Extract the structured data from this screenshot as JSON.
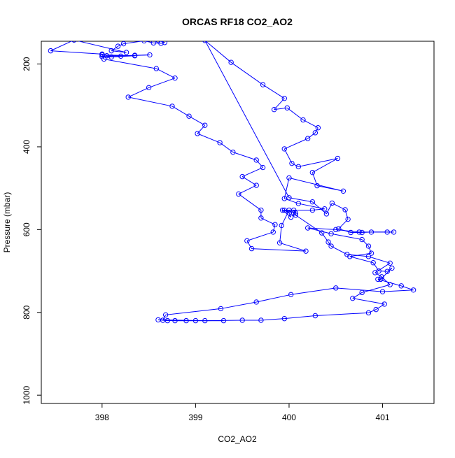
{
  "chart_data": {
    "type": "scatter",
    "title": "ORCAS RF18 CO2_AO2",
    "xlabel": "CO2_AO2",
    "ylabel": "Pressure (mbar)",
    "xlim": [
      397.35,
      401.55
    ],
    "ylim": [
      1020,
      145
    ],
    "y_reversed": true,
    "x_ticks": [
      398,
      399,
      400,
      401
    ],
    "y_ticks": [
      200,
      400,
      600,
      800,
      1000
    ],
    "series": [
      {
        "color": "#0000ff",
        "marker": "open-circle",
        "line": true,
        "points": [
          [
            398.6,
            143
          ],
          [
            398.67,
            148
          ],
          [
            398.63,
            150
          ],
          [
            398.55,
            149
          ],
          [
            398.45,
            144
          ],
          [
            398.23,
            151
          ],
          [
            398.17,
            157
          ],
          [
            398.1,
            168
          ],
          [
            398.26,
            172
          ],
          [
            397.7,
            142
          ],
          [
            397.45,
            168
          ],
          [
            398.0,
            176
          ],
          [
            398.05,
            180
          ],
          [
            398.2,
            181
          ],
          [
            398.51,
            178
          ],
          [
            398.35,
            179
          ],
          [
            398.0,
            182
          ],
          [
            398.1,
            183
          ],
          [
            398.35,
            180
          ],
          [
            398.0,
            178
          ],
          [
            398.02,
            188
          ],
          [
            398.58,
            211
          ],
          [
            398.78,
            234
          ],
          [
            398.5,
            257
          ],
          [
            398.28,
            280
          ],
          [
            398.75,
            302
          ],
          [
            398.93,
            326
          ],
          [
            399.1,
            348
          ],
          [
            399.02,
            368
          ],
          [
            399.26,
            390
          ],
          [
            399.4,
            413
          ],
          [
            399.65,
            432
          ],
          [
            399.72,
            450
          ],
          [
            399.5,
            472
          ],
          [
            399.65,
            493
          ],
          [
            399.46,
            514
          ],
          [
            399.7,
            553
          ],
          [
            399.7,
            572
          ],
          [
            399.85,
            588
          ],
          [
            399.83,
            606
          ],
          [
            399.55,
            627
          ],
          [
            399.6,
            646
          ],
          [
            400.18,
            652
          ],
          [
            399.9,
            632
          ],
          [
            399.92,
            590
          ],
          [
            400.0,
            553
          ],
          [
            400.05,
            553
          ],
          [
            400.07,
            560
          ],
          [
            399.95,
            553
          ],
          [
            400.0,
            560
          ],
          [
            400.02,
            570
          ],
          [
            399.93,
            553
          ],
          [
            400.25,
            553
          ],
          [
            400.38,
            550
          ],
          [
            400.1,
            537
          ],
          [
            399.95,
            525
          ],
          [
            400.0,
            475
          ],
          [
            400.58,
            507
          ],
          [
            400.3,
            494
          ],
          [
            400.25,
            462
          ],
          [
            400.52,
            428
          ],
          [
            400.1,
            448
          ],
          [
            400.03,
            440
          ],
          [
            399.95,
            405
          ],
          [
            400.2,
            380
          ],
          [
            400.28,
            366
          ],
          [
            400.31,
            354
          ],
          [
            400.15,
            335
          ],
          [
            399.98,
            306
          ],
          [
            399.84,
            310
          ],
          [
            399.95,
            283
          ],
          [
            399.72,
            250
          ],
          [
            399.38,
            196
          ],
          [
            399.1,
            143
          ],
          [
            400.0,
            523
          ],
          [
            400.25,
            533
          ],
          [
            400.4,
            562
          ],
          [
            400.46,
            536
          ],
          [
            400.6,
            552
          ],
          [
            400.63,
            575
          ],
          [
            400.53,
            598
          ],
          [
            400.66,
            607
          ],
          [
            400.78,
            607
          ],
          [
            400.88,
            606
          ],
          [
            401.05,
            606
          ],
          [
            401.12,
            606
          ],
          [
            400.75,
            606
          ],
          [
            400.5,
            600
          ],
          [
            400.2,
            596
          ],
          [
            400.45,
            610
          ],
          [
            400.78,
            624
          ],
          [
            400.85,
            640
          ],
          [
            400.88,
            657
          ],
          [
            400.65,
            665
          ],
          [
            400.9,
            680
          ],
          [
            400.96,
            700
          ],
          [
            401.05,
            701
          ],
          [
            401.1,
            693
          ],
          [
            400.98,
            720
          ],
          [
            400.95,
            720
          ],
          [
            401.2,
            736
          ],
          [
            401.33,
            746
          ],
          [
            401.0,
            750
          ],
          [
            400.5,
            741
          ],
          [
            400.02,
            757
          ],
          [
            399.65,
            775
          ],
          [
            399.27,
            791
          ],
          [
            398.68,
            806
          ],
          [
            398.65,
            819
          ],
          [
            398.78,
            820
          ],
          [
            399.0,
            820
          ],
          [
            399.3,
            820
          ],
          [
            398.9,
            820
          ],
          [
            398.7,
            820
          ],
          [
            398.6,
            818
          ],
          [
            399.1,
            820
          ],
          [
            399.5,
            819
          ],
          [
            399.7,
            819
          ],
          [
            399.95,
            815
          ],
          [
            400.28,
            808
          ],
          [
            400.85,
            801
          ],
          [
            400.93,
            793
          ],
          [
            401.02,
            780
          ],
          [
            400.68,
            766
          ],
          [
            400.78,
            752
          ],
          [
            401.08,
            733
          ],
          [
            400.99,
            714
          ],
          [
            400.92,
            704
          ],
          [
            401.08,
            681
          ],
          [
            400.85,
            665
          ],
          [
            400.62,
            660
          ],
          [
            400.45,
            640
          ],
          [
            400.42,
            630
          ],
          [
            400.35,
            608
          ],
          [
            400.07,
            565
          ],
          [
            400.05,
            560
          ]
        ]
      }
    ]
  }
}
